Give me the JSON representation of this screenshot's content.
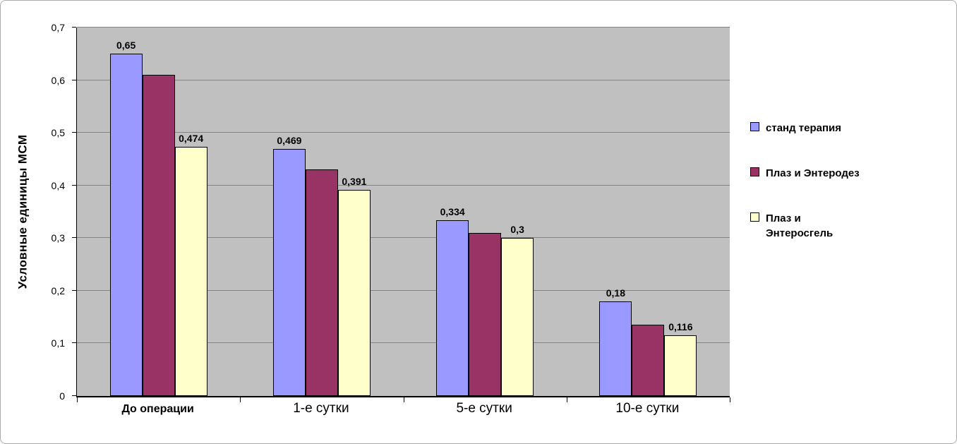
{
  "chart_data": {
    "type": "bar",
    "title": "",
    "ylabel": "Условные единицы МСМ",
    "xlabel": "",
    "ylim": [
      0,
      0.7
    ],
    "yticks": [
      "0",
      "0,1",
      "0,2",
      "0,3",
      "0,4",
      "0,5",
      "0,6",
      "0,7"
    ],
    "grid": true,
    "legend_position": "right",
    "plot_background": "#C0C0C0",
    "categories": [
      "До операции",
      "1-е сутки",
      "5-е сутки",
      "10-е сутки"
    ],
    "series": [
      {
        "name": "станд терапия",
        "color": "#9999FF",
        "values": [
          0.65,
          0.469,
          0.334,
          0.18
        ],
        "labels": [
          "0,65",
          "0,469",
          "0,334",
          "0,18"
        ]
      },
      {
        "name": "Плаз и Энтеродез",
        "color": "#993366",
        "values": [
          0.61,
          0.43,
          0.31,
          0.135
        ],
        "labels": [
          "",
          "",
          "",
          ""
        ]
      },
      {
        "name": "Плаз и Энтеросгель",
        "color": "#FFFFCC",
        "values": [
          0.474,
          0.391,
          0.3,
          0.116
        ],
        "labels": [
          "0,474",
          "0,391",
          "0,3",
          "0,116"
        ]
      }
    ],
    "legend": [
      "станд терапия",
      "Плаз и Энтеродез",
      "Плаз и\nЭнтеросгель"
    ]
  }
}
